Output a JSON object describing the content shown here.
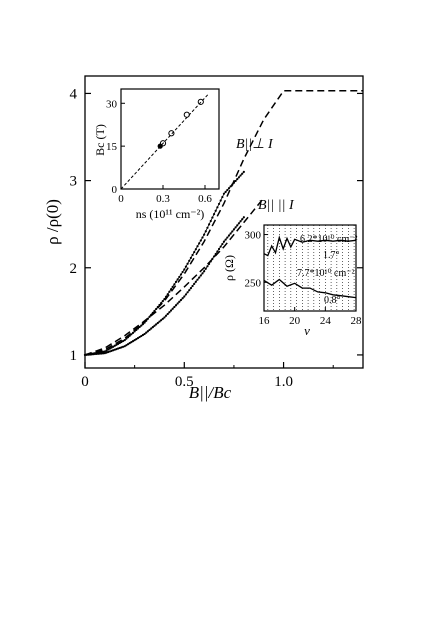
{
  "chart_data": [
    {
      "id": "main",
      "type": "line",
      "xlabel": "B||/Bc",
      "ylabel": "ρ /ρ(0)",
      "xlim": [
        0,
        1.4
      ],
      "ylim": [
        0.85,
        4.2
      ],
      "xticks": [
        "0",
        "0.5",
        "1.0"
      ],
      "yticks": [
        "1",
        "2",
        "3",
        "4"
      ],
      "annotations": {
        "perp": "B||⊥ I",
        "par": "B|| || I"
      },
      "series": [
        {
          "name": "B||⊥ I",
          "style": "dotted-points",
          "x": [
            0.0,
            0.1,
            0.2,
            0.3,
            0.4,
            0.5,
            0.6,
            0.7,
            0.8
          ],
          "y": [
            1.0,
            1.04,
            1.17,
            1.37,
            1.64,
            1.98,
            2.38,
            2.85,
            3.1
          ]
        },
        {
          "name": "B||⊥ I (fit)",
          "style": "dashed",
          "x": [
            0.0,
            0.1,
            0.2,
            0.3,
            0.4,
            0.5,
            0.6,
            0.7,
            0.8,
            0.9,
            1.0,
            1.4
          ],
          "y": [
            1.0,
            1.06,
            1.19,
            1.38,
            1.62,
            1.93,
            2.3,
            2.74,
            3.25,
            3.7,
            4.03,
            4.03
          ]
        },
        {
          "name": "B|| || I",
          "style": "dotted-points",
          "x": [
            0.0,
            0.1,
            0.2,
            0.3,
            0.4,
            0.5,
            0.6,
            0.7,
            0.8
          ],
          "y": [
            1.0,
            1.02,
            1.1,
            1.24,
            1.43,
            1.67,
            1.96,
            2.3,
            2.58
          ]
        },
        {
          "name": "B|| || I (fit)",
          "style": "dashed",
          "x": [
            0.0,
            0.1,
            0.2,
            0.3,
            0.4,
            0.5,
            0.6,
            0.7,
            0.8,
            0.9
          ],
          "y": [
            1.0,
            1.08,
            1.22,
            1.39,
            1.57,
            1.78,
            2.0,
            2.24,
            2.52,
            2.8
          ]
        }
      ]
    },
    {
      "id": "inset-bc",
      "type": "scatter",
      "xlabel": "ns (10¹¹ cm⁻²)",
      "ylabel": "Bc (T)",
      "xlim": [
        0,
        0.7
      ],
      "ylim": [
        0,
        35
      ],
      "xticks": [
        "0",
        "0.3",
        "0.6"
      ],
      "yticks": [
        "0",
        "15",
        "30"
      ],
      "series": [
        {
          "name": "open",
          "x": [
            0.3,
            0.36,
            0.47,
            0.57
          ],
          "y": [
            16,
            19.5,
            26,
            30.5
          ]
        },
        {
          "name": "filled",
          "x": [
            0.28
          ],
          "y": [
            15
          ]
        },
        {
          "name": "fit",
          "style": "dashed",
          "x": [
            0.0,
            0.62
          ],
          "y": [
            0.0,
            33
          ]
        }
      ]
    },
    {
      "id": "inset-rho",
      "type": "line",
      "xlabel": "ν",
      "ylabel": "ρ (Ω)",
      "xlim": [
        16,
        28
      ],
      "ylim": [
        220,
        310
      ],
      "xticks": [
        "16",
        "20",
        "24",
        "28"
      ],
      "yticks": [
        "250",
        "300"
      ],
      "annotations": {
        "upper_density": "6.2*10¹⁰ cm⁻²",
        "upper_angle": "1.7°",
        "lower_density": "7.7*10¹⁰ cm⁻²",
        "lower_angle": "0.8°"
      },
      "series": [
        {
          "name": "upper",
          "x": [
            16,
            16.5,
            17,
            17.5,
            18,
            18.5,
            19,
            19.5,
            20,
            21,
            22,
            23,
            24,
            25,
            26,
            27,
            28
          ],
          "y": [
            280,
            278,
            288,
            281,
            297,
            285,
            296,
            287,
            295,
            292,
            294,
            293,
            294,
            293,
            294,
            293,
            294
          ]
        },
        {
          "name": "lower",
          "x": [
            16,
            17,
            18,
            19,
            20,
            21,
            22,
            23,
            24,
            25,
            26,
            27,
            28
          ],
          "y": [
            252,
            247,
            253,
            246,
            249,
            244,
            244,
            240,
            239,
            237,
            236,
            235,
            234
          ]
        }
      ]
    }
  ]
}
